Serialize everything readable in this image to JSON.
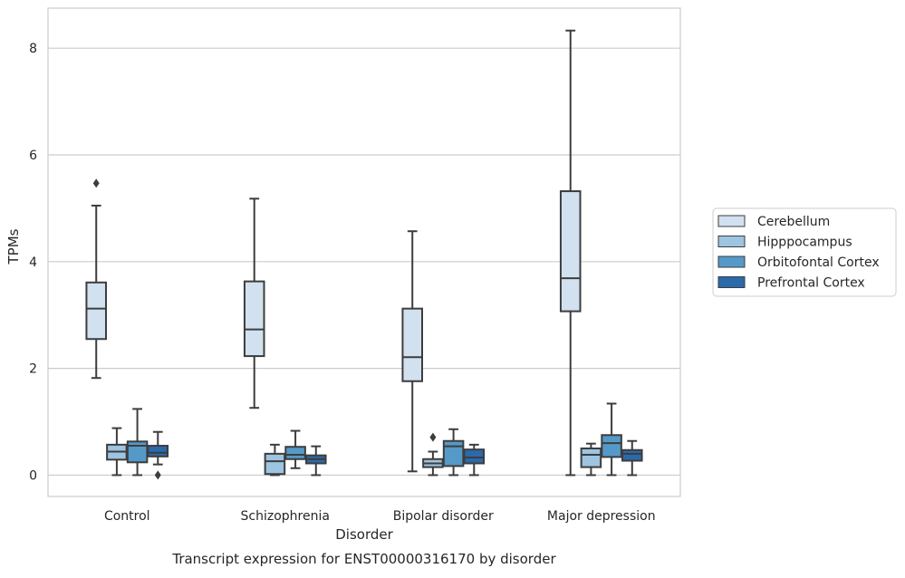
{
  "chart_data": {
    "type": "box",
    "caption": "Transcript expression for ENST00000316170 by disorder",
    "xlabel": "Disorder",
    "ylabel": "TPMs",
    "ylim": [
      -0.4,
      8.75
    ],
    "yticks": [
      0,
      2,
      4,
      6,
      8
    ],
    "grid": "horizontal",
    "legend_position": "right",
    "categories": [
      "Control",
      "Schizophrenia",
      "Bipolar disorder",
      "Major depression"
    ],
    "series": [
      {
        "name": "Cerebellum",
        "color": "#d1e1f0",
        "boxes": [
          {
            "whisker_low": 1.82,
            "q1": 2.55,
            "median": 3.12,
            "q3": 3.61,
            "whisker_high": 5.05,
            "outliers": [
              5.47
            ]
          },
          {
            "whisker_low": 1.26,
            "q1": 2.23,
            "median": 2.73,
            "q3": 3.63,
            "whisker_high": 5.18,
            "outliers": []
          },
          {
            "whisker_low": 0.07,
            "q1": 1.76,
            "median": 2.21,
            "q3": 3.12,
            "whisker_high": 4.57,
            "outliers": []
          },
          {
            "whisker_low": 0.0,
            "q1": 3.07,
            "median": 3.69,
            "q3": 5.32,
            "whisker_high": 8.33,
            "outliers": []
          }
        ]
      },
      {
        "name": "Hipppocampus",
        "color": "#9dc4e0",
        "boxes": [
          {
            "whisker_low": 0.0,
            "q1": 0.29,
            "median": 0.44,
            "q3": 0.57,
            "whisker_high": 0.88,
            "outliers": []
          },
          {
            "whisker_low": 0.0,
            "q1": 0.02,
            "median": 0.26,
            "q3": 0.4,
            "whisker_high": 0.57,
            "outliers": []
          },
          {
            "whisker_low": 0.0,
            "q1": 0.15,
            "median": 0.22,
            "q3": 0.3,
            "whisker_high": 0.44,
            "outliers": [
              0.71
            ]
          },
          {
            "whisker_low": 0.0,
            "q1": 0.15,
            "median": 0.38,
            "q3": 0.5,
            "whisker_high": 0.59,
            "outliers": []
          }
        ]
      },
      {
        "name": "Orbitofontal Cortex",
        "color": "#5599c8",
        "boxes": [
          {
            "whisker_low": 0.0,
            "q1": 0.24,
            "median": 0.55,
            "q3": 0.63,
            "whisker_high": 1.24,
            "outliers": []
          },
          {
            "whisker_low": 0.13,
            "q1": 0.3,
            "median": 0.38,
            "q3": 0.53,
            "whisker_high": 0.83,
            "outliers": []
          },
          {
            "whisker_low": 0.0,
            "q1": 0.17,
            "median": 0.54,
            "q3": 0.64,
            "whisker_high": 0.86,
            "outliers": []
          },
          {
            "whisker_low": 0.0,
            "q1": 0.34,
            "median": 0.6,
            "q3": 0.75,
            "whisker_high": 1.34,
            "outliers": []
          }
        ]
      },
      {
        "name": "Prefrontal Cortex",
        "color": "#2a6aab",
        "boxes": [
          {
            "whisker_low": 0.2,
            "q1": 0.35,
            "median": 0.42,
            "q3": 0.55,
            "whisker_high": 0.81,
            "outliers": [
              0.0
            ]
          },
          {
            "whisker_low": 0.0,
            "q1": 0.22,
            "median": 0.3,
            "q3": 0.37,
            "whisker_high": 0.54,
            "outliers": []
          },
          {
            "whisker_low": 0.0,
            "q1": 0.22,
            "median": 0.33,
            "q3": 0.48,
            "whisker_high": 0.57,
            "outliers": []
          },
          {
            "whisker_low": 0.0,
            "q1": 0.27,
            "median": 0.4,
            "q3": 0.47,
            "whisker_high": 0.64,
            "outliers": []
          }
        ]
      }
    ]
  }
}
